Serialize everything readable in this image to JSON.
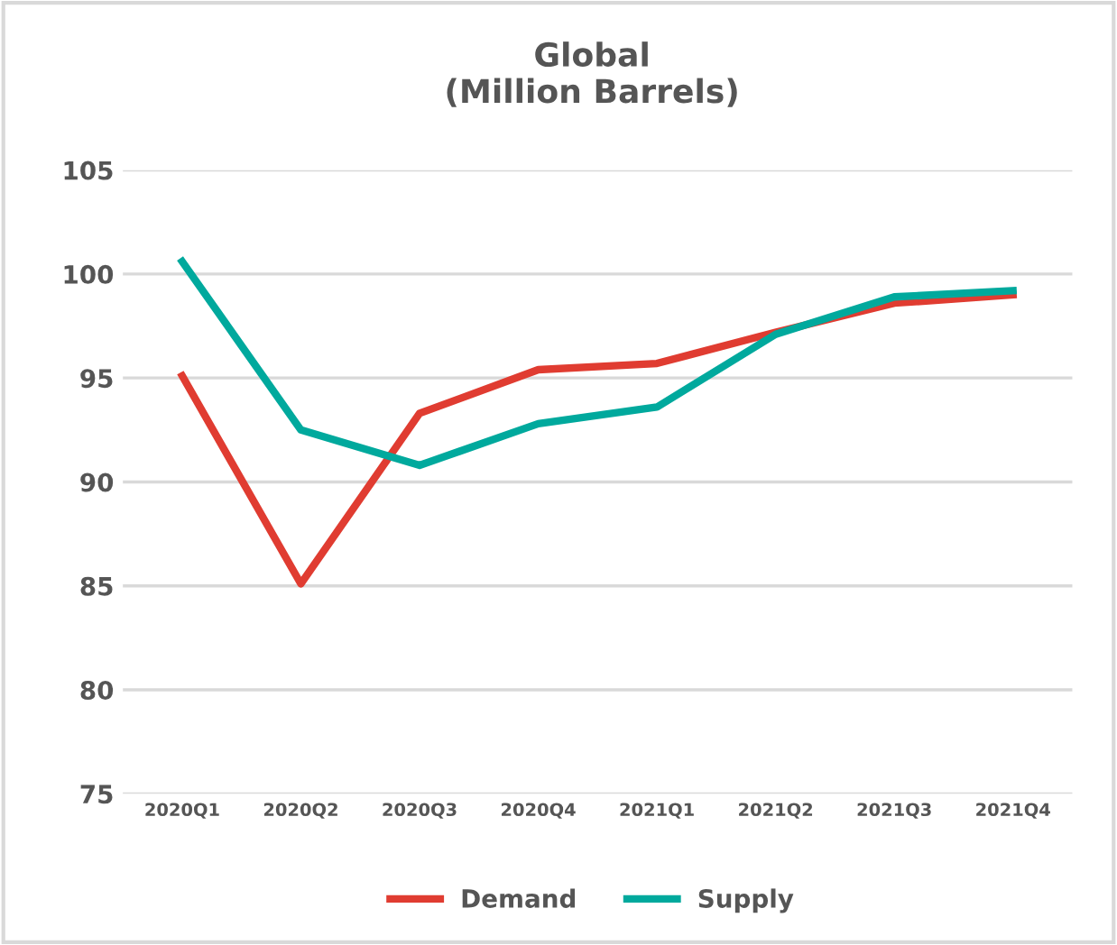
{
  "chart_data": {
    "type": "line",
    "title": "Global\n(Million Barrels)",
    "categories": [
      "2020Q1",
      "2020Q2",
      "2020Q3",
      "2020Q4",
      "2021Q1",
      "2021Q2",
      "2021Q3",
      "2021Q4"
    ],
    "series": [
      {
        "name": "Demand",
        "color": "#e03c31",
        "values": [
          95.1,
          85.1,
          93.3,
          95.4,
          95.7,
          97.2,
          98.6,
          99.0
        ]
      },
      {
        "name": "Supply",
        "color": "#00a99d",
        "values": [
          100.6,
          92.5,
          90.8,
          92.8,
          93.6,
          97.1,
          98.9,
          99.2
        ]
      }
    ],
    "ylim": [
      75,
      105
    ],
    "yticks": [
      75,
      80,
      85,
      90,
      95,
      100,
      105
    ],
    "grid": "y",
    "legend": "bottom",
    "marker": "none",
    "line_style": "solid"
  }
}
